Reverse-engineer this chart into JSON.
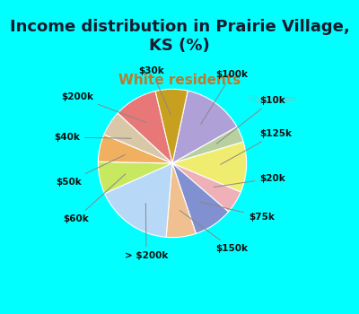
{
  "title": "Income distribution in Prairie Village,\nKS (%)",
  "subtitle": "White residents",
  "bg_color": "#00FFFF",
  "chart_bg_color": "#dff0e8",
  "labels": [
    "$100k",
    "$10k",
    "$125k",
    "$20k",
    "$75k",
    "$150k",
    "> $200k",
    "$60k",
    "$50k",
    "$40k",
    "$200k",
    "$30k"
  ],
  "sizes": [
    13.5,
    3.5,
    11.0,
    5.0,
    8.5,
    6.5,
    17.0,
    7.0,
    6.0,
    5.5,
    9.5,
    7.0
  ],
  "colors": [
    "#b0a0d8",
    "#b8d0a0",
    "#f0ec70",
    "#f0b0b8",
    "#8090d0",
    "#f0c090",
    "#b8d8f8",
    "#c8e860",
    "#f0b060",
    "#d8c8a8",
    "#e87878",
    "#c8a020"
  ],
  "startangle": 78,
  "title_fontsize": 13,
  "subtitle_fontsize": 11,
  "label_fontsize": 7.5
}
